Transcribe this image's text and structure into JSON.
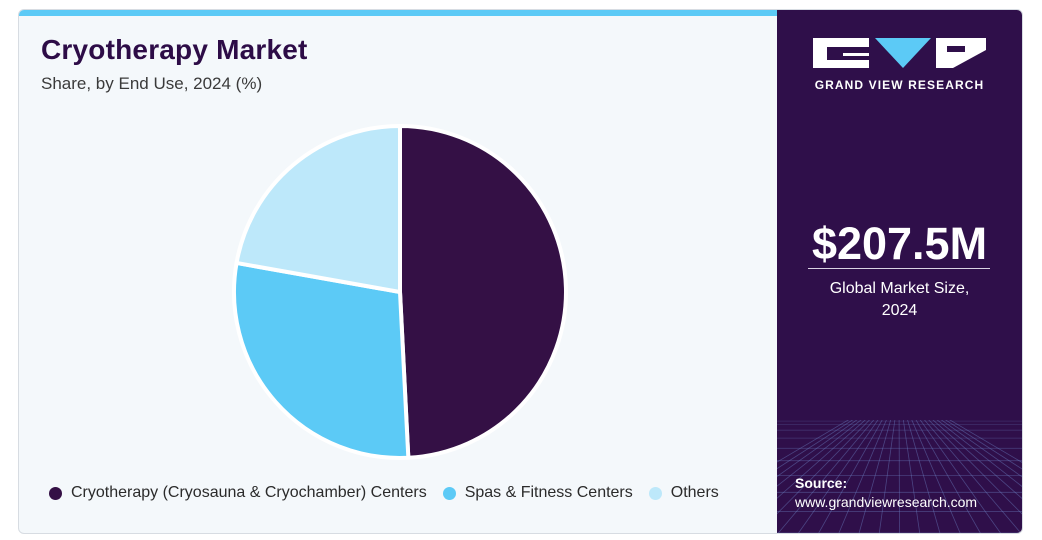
{
  "header": {
    "title": "Cryotherapy Market",
    "subtitle": "Share, by End Use, 2024 (%)"
  },
  "chart_data": {
    "type": "pie",
    "title": "Cryotherapy Market",
    "subtitle": "Share, by End Use, 2024 (%)",
    "categories": [
      "Cryotherapy (Cryosauna & Cryochamber) Centers",
      "Spas & Fitness Centers",
      "Others"
    ],
    "values": [
      49.2,
      28.6,
      22.2
    ],
    "colors": [
      "#341045",
      "#5ccaf6",
      "#bde8fa"
    ],
    "legend_position": "bottom"
  },
  "sidebar": {
    "brand": "GRAND VIEW RESEARCH",
    "market_size": "$207.5M",
    "market_size_label_line1": "Global Market Size,",
    "market_size_label_line2": "2024",
    "source_label": "Source:",
    "source_url": "www.grandviewresearch.com"
  },
  "colors": {
    "accent_bar": "#5ccaf6",
    "sidebar_bg": "#2f0f4a",
    "title": "#2d0c47"
  }
}
